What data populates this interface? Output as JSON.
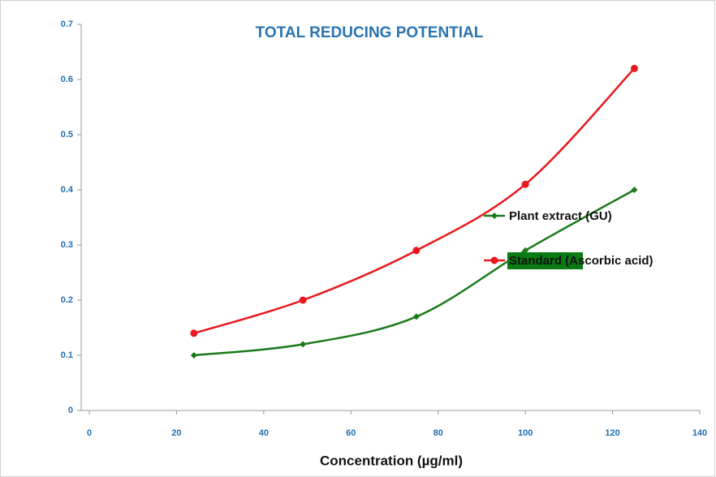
{
  "chart_data": {
    "type": "line",
    "title": "TOTAL REDUCING POTENTIAL",
    "x_label": "Concentration  (µg/ml)",
    "xlim": [
      0,
      140
    ],
    "xticks": [
      0,
      20,
      40,
      60,
      80,
      100,
      120,
      140
    ],
    "ylim": [
      0,
      0.7
    ],
    "yticks": [
      0,
      0.1,
      0.2,
      0.3,
      0.4,
      0.5,
      0.6,
      0.7
    ],
    "series": [
      {
        "name": "Plant extract  (GU)",
        "color": "#1a7a1a",
        "marker": "diamond",
        "x": [
          24,
          49,
          75,
          100,
          125
        ],
        "values": [
          0.1,
          0.12,
          0.17,
          0.29,
          0.4
        ]
      },
      {
        "name": "Standard (Ascorbic  acid)",
        "color": "#e8191e",
        "marker": "circle",
        "x": [
          24,
          49,
          75,
          100,
          125
        ],
        "values": [
          0.14,
          0.2,
          0.29,
          0.41,
          0.62
        ]
      }
    ]
  }
}
